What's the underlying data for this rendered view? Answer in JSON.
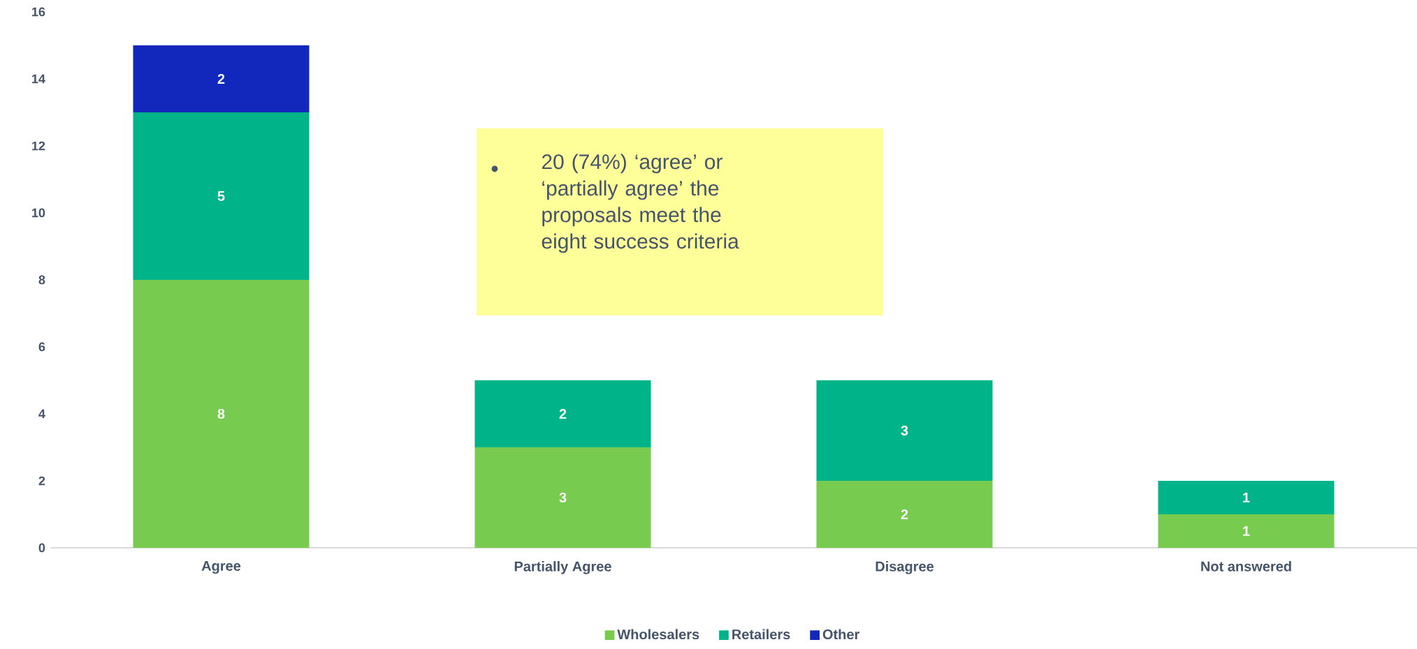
{
  "chart_data": {
    "type": "bar",
    "stacked": true,
    "categories": [
      "Agree",
      "Partially Agree",
      "Disagree",
      "Not answered"
    ],
    "series": [
      {
        "name": "Wholesalers",
        "color": "#77cb4f",
        "values": [
          8,
          3,
          2,
          1
        ]
      },
      {
        "name": "Retailers",
        "color": "#00b388",
        "values": [
          5,
          2,
          3,
          1
        ]
      },
      {
        "name": "Other",
        "color": "#1228bd",
        "values": [
          2,
          null,
          null,
          null
        ]
      }
    ],
    "ylim": [
      0,
      16
    ],
    "yticks": [
      0,
      2,
      4,
      6,
      8,
      10,
      12,
      14,
      16
    ],
    "data_labels": true,
    "legend": "bottom",
    "grid": false,
    "annotations": [
      "20 (74%) ‘agree’ or ‘partially agree’ the proposals meet the eight success criteria"
    ]
  }
}
